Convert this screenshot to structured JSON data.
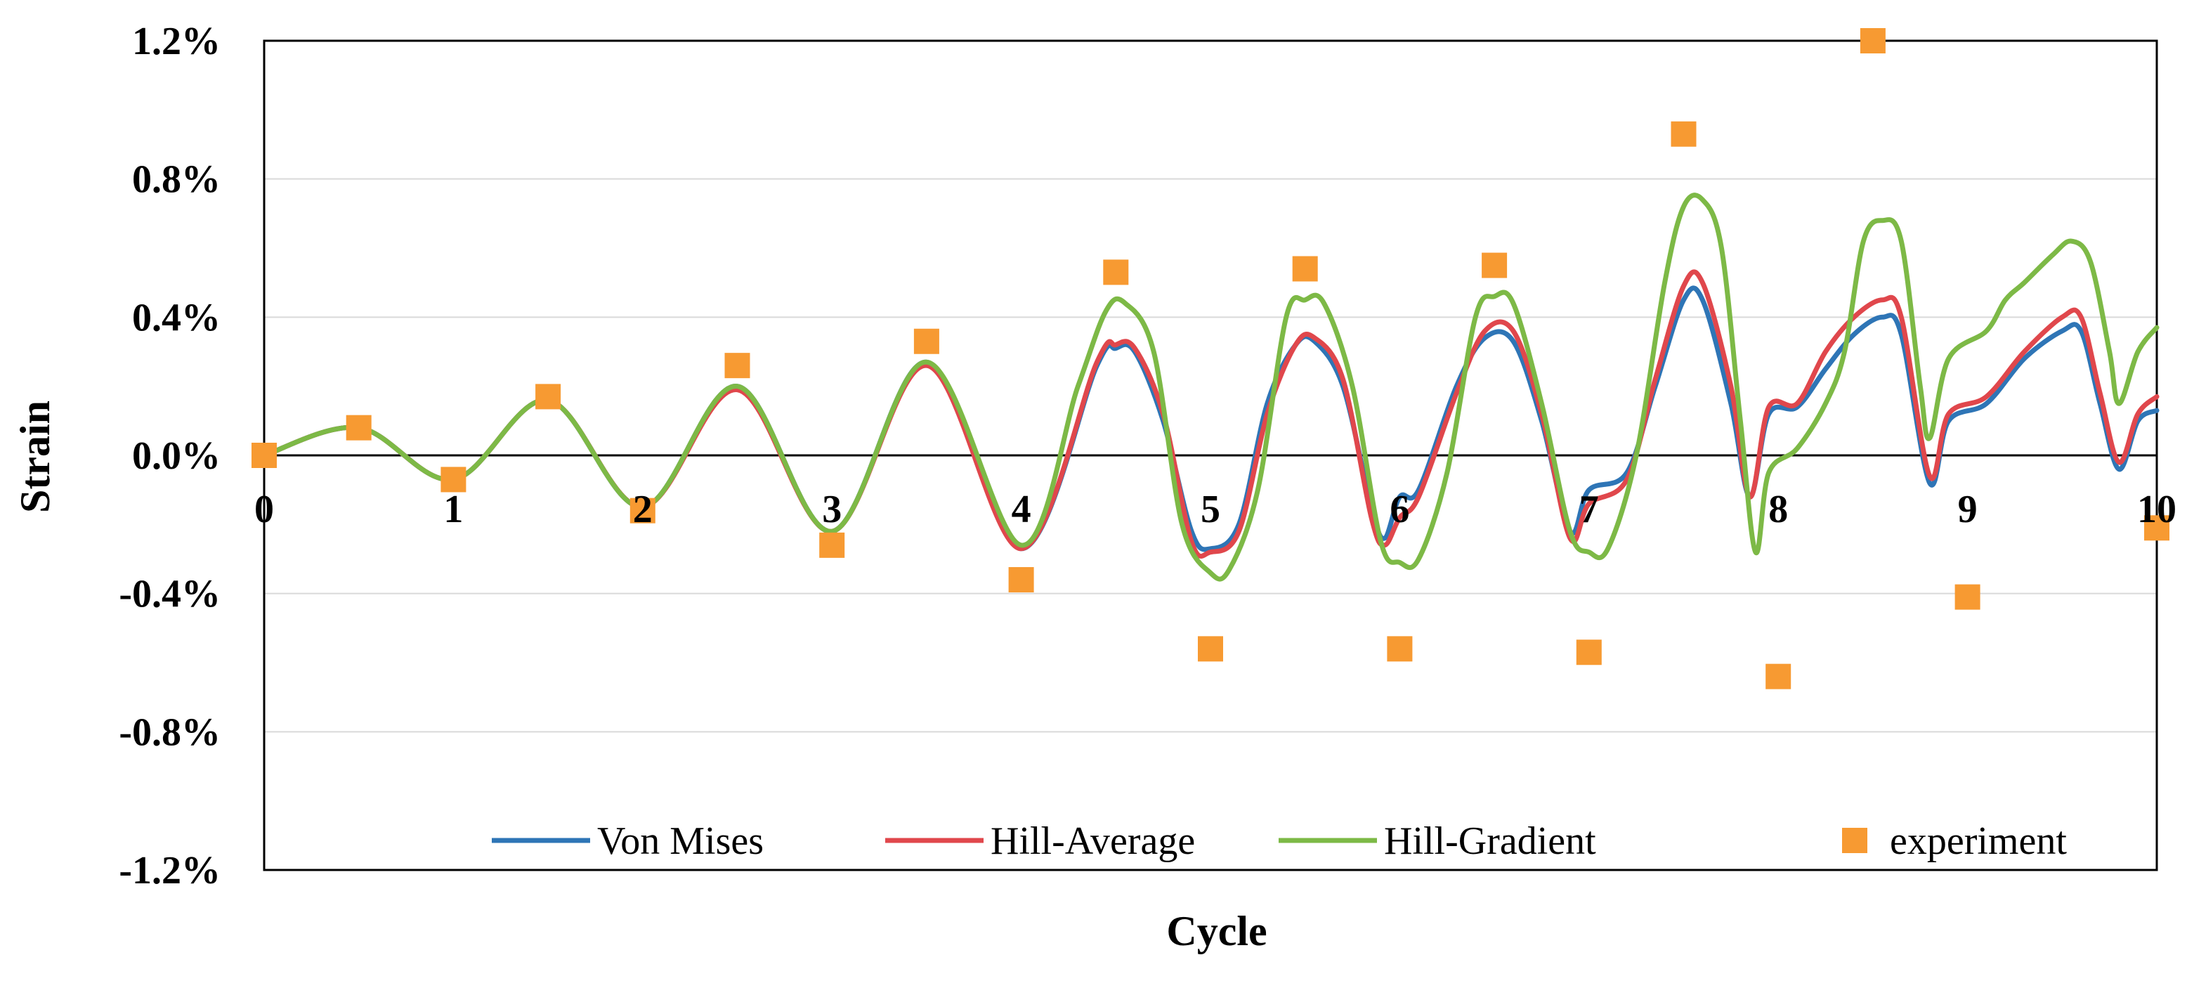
{
  "chart_data": {
    "type": "line",
    "xlabel": "Cycle",
    "ylabel": "Strain",
    "xlim": [
      0,
      10
    ],
    "ylim": [
      -1.2,
      1.2
    ],
    "x_ticks": [
      "0",
      "1",
      "2",
      "3",
      "4",
      "5",
      "6",
      "7",
      "8",
      "9",
      "10"
    ],
    "y_ticks": [
      {
        "value": 1.2,
        "label": "1.2%"
      },
      {
        "value": 0.8,
        "label": "0.8%"
      },
      {
        "value": 0.4,
        "label": "0.4%"
      },
      {
        "value": 0.0,
        "label": "0.0%"
      },
      {
        "value": -0.4,
        "label": "-0.4%"
      },
      {
        "value": -0.8,
        "label": "-0.8%"
      },
      {
        "value": -1.2,
        "label": "-1.2%"
      }
    ],
    "grid": "horizontal",
    "legend_position": "bottom-inside",
    "series": [
      {
        "name": "Von Mises",
        "kind": "line",
        "color": "#2E75B6",
        "points": [
          [
            0,
            0
          ],
          [
            0.5,
            0.08
          ],
          [
            1,
            -0.07
          ],
          [
            1.5,
            0.16
          ],
          [
            2,
            -0.15
          ],
          [
            2.5,
            0.2
          ],
          [
            3,
            -0.22
          ],
          [
            3.5,
            0.27
          ],
          [
            4,
            -0.27
          ],
          [
            4.4,
            0.26
          ],
          [
            4.5,
            0.31
          ],
          [
            4.6,
            0.3
          ],
          [
            4.75,
            0.1
          ],
          [
            4.9,
            -0.22
          ],
          [
            5.0,
            -0.27
          ],
          [
            5.15,
            -0.2
          ],
          [
            5.3,
            0.15
          ],
          [
            5.45,
            0.32
          ],
          [
            5.55,
            0.33
          ],
          [
            5.7,
            0.2
          ],
          [
            5.85,
            -0.15
          ],
          [
            5.92,
            -0.24
          ],
          [
            6.0,
            -0.12
          ],
          [
            6.1,
            -0.1
          ],
          [
            6.3,
            0.2
          ],
          [
            6.45,
            0.34
          ],
          [
            6.6,
            0.33
          ],
          [
            6.75,
            0.1
          ],
          [
            6.9,
            -0.22
          ],
          [
            7.0,
            -0.1
          ],
          [
            7.2,
            -0.05
          ],
          [
            7.35,
            0.2
          ],
          [
            7.5,
            0.45
          ],
          [
            7.6,
            0.45
          ],
          [
            7.75,
            0.15
          ],
          [
            7.85,
            -0.12
          ],
          [
            7.95,
            0.12
          ],
          [
            8.1,
            0.14
          ],
          [
            8.25,
            0.25
          ],
          [
            8.4,
            0.35
          ],
          [
            8.55,
            0.4
          ],
          [
            8.65,
            0.35
          ],
          [
            8.8,
            -0.08
          ],
          [
            8.9,
            0.1
          ],
          [
            9.1,
            0.15
          ],
          [
            9.3,
            0.28
          ],
          [
            9.5,
            0.36
          ],
          [
            9.6,
            0.36
          ],
          [
            9.7,
            0.15
          ],
          [
            9.8,
            -0.04
          ],
          [
            9.9,
            0.1
          ],
          [
            10,
            0.13
          ]
        ]
      },
      {
        "name": "Hill-Average",
        "kind": "line",
        "color": "#E0474C",
        "points": [
          [
            0,
            0
          ],
          [
            0.5,
            0.08
          ],
          [
            1,
            -0.07
          ],
          [
            1.5,
            0.16
          ],
          [
            2,
            -0.15
          ],
          [
            2.5,
            0.19
          ],
          [
            3,
            -0.22
          ],
          [
            3.5,
            0.26
          ],
          [
            4,
            -0.27
          ],
          [
            4.4,
            0.27
          ],
          [
            4.5,
            0.32
          ],
          [
            4.6,
            0.31
          ],
          [
            4.75,
            0.12
          ],
          [
            4.9,
            -0.25
          ],
          [
            5.0,
            -0.28
          ],
          [
            5.15,
            -0.22
          ],
          [
            5.3,
            0.12
          ],
          [
            5.45,
            0.32
          ],
          [
            5.55,
            0.34
          ],
          [
            5.7,
            0.22
          ],
          [
            5.85,
            -0.18
          ],
          [
            5.92,
            -0.26
          ],
          [
            6.0,
            -0.18
          ],
          [
            6.1,
            -0.12
          ],
          [
            6.3,
            0.18
          ],
          [
            6.45,
            0.36
          ],
          [
            6.6,
            0.36
          ],
          [
            6.75,
            0.12
          ],
          [
            6.9,
            -0.24
          ],
          [
            7.0,
            -0.14
          ],
          [
            7.2,
            -0.07
          ],
          [
            7.35,
            0.22
          ],
          [
            7.5,
            0.49
          ],
          [
            7.6,
            0.5
          ],
          [
            7.75,
            0.2
          ],
          [
            7.85,
            -0.12
          ],
          [
            7.95,
            0.14
          ],
          [
            8.1,
            0.15
          ],
          [
            8.25,
            0.3
          ],
          [
            8.4,
            0.4
          ],
          [
            8.55,
            0.45
          ],
          [
            8.65,
            0.4
          ],
          [
            8.8,
            -0.06
          ],
          [
            8.9,
            0.12
          ],
          [
            9.1,
            0.17
          ],
          [
            9.3,
            0.3
          ],
          [
            9.5,
            0.4
          ],
          [
            9.6,
            0.4
          ],
          [
            9.7,
            0.18
          ],
          [
            9.8,
            -0.02
          ],
          [
            9.9,
            0.12
          ],
          [
            10,
            0.17
          ]
        ]
      },
      {
        "name": "Hill-Gradient",
        "kind": "line",
        "color": "#7DB946",
        "points": [
          [
            0,
            0
          ],
          [
            0.5,
            0.08
          ],
          [
            1,
            -0.07
          ],
          [
            1.5,
            0.16
          ],
          [
            2,
            -0.15
          ],
          [
            2.5,
            0.2
          ],
          [
            3,
            -0.22
          ],
          [
            3.5,
            0.27
          ],
          [
            4,
            -0.26
          ],
          [
            4.3,
            0.2
          ],
          [
            4.45,
            0.42
          ],
          [
            4.55,
            0.44
          ],
          [
            4.7,
            0.3
          ],
          [
            4.85,
            -0.2
          ],
          [
            5.0,
            -0.34
          ],
          [
            5.1,
            -0.33
          ],
          [
            5.25,
            -0.1
          ],
          [
            5.4,
            0.4
          ],
          [
            5.5,
            0.45
          ],
          [
            5.6,
            0.44
          ],
          [
            5.75,
            0.2
          ],
          [
            5.9,
            -0.25
          ],
          [
            6.0,
            -0.31
          ],
          [
            6.1,
            -0.3
          ],
          [
            6.25,
            -0.05
          ],
          [
            6.4,
            0.4
          ],
          [
            6.5,
            0.46
          ],
          [
            6.6,
            0.44
          ],
          [
            6.75,
            0.15
          ],
          [
            6.9,
            -0.22
          ],
          [
            7.0,
            -0.28
          ],
          [
            7.1,
            -0.27
          ],
          [
            7.25,
            0.0
          ],
          [
            7.4,
            0.5
          ],
          [
            7.5,
            0.72
          ],
          [
            7.6,
            0.74
          ],
          [
            7.7,
            0.6
          ],
          [
            7.8,
            0.1
          ],
          [
            7.88,
            -0.28
          ],
          [
            7.95,
            -0.05
          ],
          [
            8.1,
            0.02
          ],
          [
            8.25,
            0.15
          ],
          [
            8.35,
            0.3
          ],
          [
            8.45,
            0.62
          ],
          [
            8.55,
            0.68
          ],
          [
            8.65,
            0.62
          ],
          [
            8.75,
            0.2
          ],
          [
            8.8,
            0.05
          ],
          [
            8.9,
            0.28
          ],
          [
            9.1,
            0.36
          ],
          [
            9.2,
            0.45
          ],
          [
            9.3,
            0.5
          ],
          [
            9.45,
            0.58
          ],
          [
            9.55,
            0.62
          ],
          [
            9.65,
            0.56
          ],
          [
            9.75,
            0.3
          ],
          [
            9.8,
            0.15
          ],
          [
            9.9,
            0.3
          ],
          [
            10,
            0.37
          ]
        ]
      },
      {
        "name": "experiment",
        "kind": "marker",
        "color": "#F79A32",
        "points": [
          [
            0,
            0
          ],
          [
            0.5,
            0.08
          ],
          [
            1,
            -0.07
          ],
          [
            1.5,
            0.17
          ],
          [
            2,
            -0.16
          ],
          [
            2.5,
            0.26
          ],
          [
            3,
            -0.26
          ],
          [
            3.5,
            0.33
          ],
          [
            4,
            -0.36
          ],
          [
            4.5,
            0.53
          ],
          [
            5,
            -0.56
          ],
          [
            5.5,
            0.54
          ],
          [
            6,
            -0.56
          ],
          [
            6.5,
            0.55
          ],
          [
            7,
            -0.57
          ],
          [
            7.5,
            0.93
          ],
          [
            8,
            -0.64
          ],
          [
            8.5,
            1.2
          ],
          [
            9,
            -0.41
          ],
          [
            10,
            -0.21
          ]
        ]
      }
    ]
  }
}
